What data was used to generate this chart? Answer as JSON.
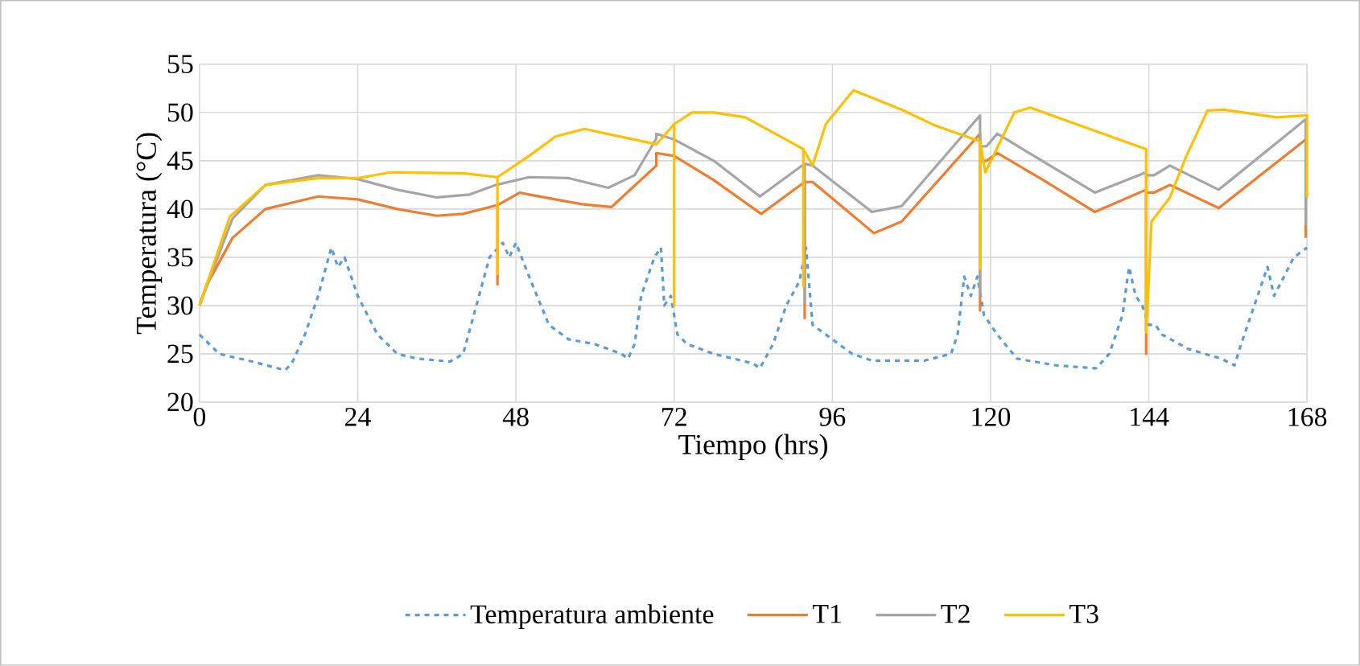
{
  "chart_data": {
    "type": "line",
    "xlabel": "Tiempo (hrs)",
    "ylabel": "Temperatura (°C)",
    "xlim": [
      0,
      168
    ],
    "ylim": [
      20,
      55
    ],
    "xticks": [
      0,
      24,
      48,
      72,
      96,
      120,
      144,
      168
    ],
    "yticks": [
      20,
      25,
      30,
      35,
      40,
      45,
      50,
      55
    ],
    "grid": true,
    "legend": "bottom",
    "marker": "none",
    "series": [
      {
        "name": "Temperatura ambiente",
        "color": "#5b9bd5",
        "line_style": "dashed",
        "x": [
          0,
          3,
          8,
          13,
          14,
          16,
          18,
          20,
          21,
          22,
          24,
          27,
          30,
          33,
          38,
          40,
          42,
          44,
          46,
          47,
          48,
          50,
          53,
          56,
          60,
          64,
          65,
          66,
          67,
          69,
          70,
          70.5,
          71.5,
          72.5,
          74,
          78,
          84,
          85,
          87,
          89,
          91,
          92,
          93,
          95,
          99,
          102,
          110,
          114,
          115,
          116,
          117,
          118,
          119,
          121,
          124,
          130,
          136,
          138,
          140,
          141,
          142,
          143,
          144,
          145,
          146,
          150,
          155,
          157,
          158,
          160,
          162,
          163,
          166,
          168
        ],
        "values": [
          27,
          25,
          24.2,
          23.3,
          24,
          27,
          31,
          36,
          34,
          35,
          31,
          27,
          25,
          24.5,
          24.2,
          25,
          30,
          35,
          36.5,
          35,
          36.5,
          33,
          28,
          26.5,
          26,
          25,
          24.5,
          26,
          31,
          35,
          36,
          30,
          31,
          27,
          26,
          25,
          24,
          23.5,
          26,
          30,
          32.5,
          36,
          28,
          27,
          25,
          24.3,
          24.3,
          25,
          27,
          33,
          31,
          33,
          29,
          27,
          24.5,
          23.8,
          23.5,
          25,
          29,
          34,
          31,
          30,
          28,
          28,
          27,
          25.5,
          24.5,
          23.8,
          26,
          30,
          34,
          31,
          35,
          36
        ]
      },
      {
        "name": "T1",
        "color": "#ed7d31",
        "line_style": "solid",
        "x": [
          0,
          1,
          5,
          10,
          18,
          24,
          30,
          36,
          40,
          45.2,
          45.2,
          45.2,
          48.6,
          50,
          58,
          62.5,
          69.3,
          69.3,
          72,
          78,
          85.2,
          91.8,
          91.8,
          91.8,
          93,
          102.3,
          106.5,
          118.4,
          118.4,
          118.4,
          119.4,
          121,
          128,
          135.8,
          143.6,
          143.6,
          143.6,
          144.8,
          147.2,
          154.6,
          160,
          167.8,
          167.8
        ],
        "values": [
          30,
          32,
          37,
          40,
          41.3,
          41,
          40,
          39.3,
          39.5,
          40.4,
          32.2,
          40.4,
          41.7,
          41.5,
          40.5,
          40.2,
          44.5,
          45.8,
          45.5,
          43,
          39.5,
          42.8,
          28.7,
          42.8,
          42.8,
          37.5,
          38.7,
          47.8,
          29.5,
          45,
          45,
          45.8,
          43,
          39.7,
          42,
          25,
          41.7,
          41.7,
          42.5,
          40.1,
          43,
          47.2,
          37
        ]
      },
      {
        "name": "T2",
        "color": "#a5a5a5",
        "line_style": "solid",
        "x": [
          0,
          5,
          10,
          18,
          24,
          30,
          36,
          41,
          45,
          50,
          56,
          62,
          66,
          69.3,
          69.3,
          72,
          78,
          85,
          91.8,
          91.8,
          91.8,
          93,
          102,
          106.5,
          118.4,
          118.4,
          118.4,
          119.4,
          121,
          135.8,
          143.6,
          143.6,
          143.6,
          144.8,
          147.2,
          154.6,
          167.8,
          167.8
        ],
        "values": [
          30,
          39,
          42.5,
          43.5,
          43.1,
          42,
          41.2,
          41.5,
          42.5,
          43.3,
          43.2,
          42.2,
          43.5,
          47.3,
          47.8,
          47.2,
          45,
          41.3,
          44.7,
          30.5,
          44.7,
          44.5,
          39.7,
          40.3,
          49.7,
          31,
          46.5,
          46.5,
          47.8,
          41.7,
          43.8,
          27.5,
          43.5,
          43.5,
          44.5,
          42,
          49.3,
          38.3
        ]
      },
      {
        "name": "T3",
        "color": "#ffc000",
        "line_style": "solid",
        "x": [
          0,
          4.6,
          10,
          18,
          24,
          29,
          40,
          45.2,
          45.2,
          45.2,
          50,
          54,
          58.4,
          69.3,
          72,
          72,
          72,
          74.7,
          78,
          82.8,
          91.6,
          91.6,
          91.6,
          93,
          95,
          99.2,
          106.5,
          111.4,
          118.4,
          118.4,
          118.4,
          119.2,
          123.6,
          126,
          135,
          143.6,
          143.6,
          144.4,
          147.2,
          149.7,
          152.9,
          155.3,
          163.4,
          168,
          168
        ],
        "values": [
          30,
          39.2,
          42.5,
          43.2,
          43.2,
          43.8,
          43.7,
          43.3,
          33.3,
          43.3,
          45.5,
          47.5,
          48.3,
          46.7,
          48.8,
          30,
          48.8,
          50,
          50,
          49.5,
          46.2,
          32,
          46.2,
          44.5,
          48.8,
          52.3,
          50.3,
          48.7,
          47,
          33.8,
          47,
          43.8,
          50,
          50.5,
          48.3,
          46.2,
          27.2,
          38.7,
          41.2,
          45.5,
          50.2,
          50.3,
          49.5,
          49.7,
          41.2
        ]
      }
    ]
  }
}
